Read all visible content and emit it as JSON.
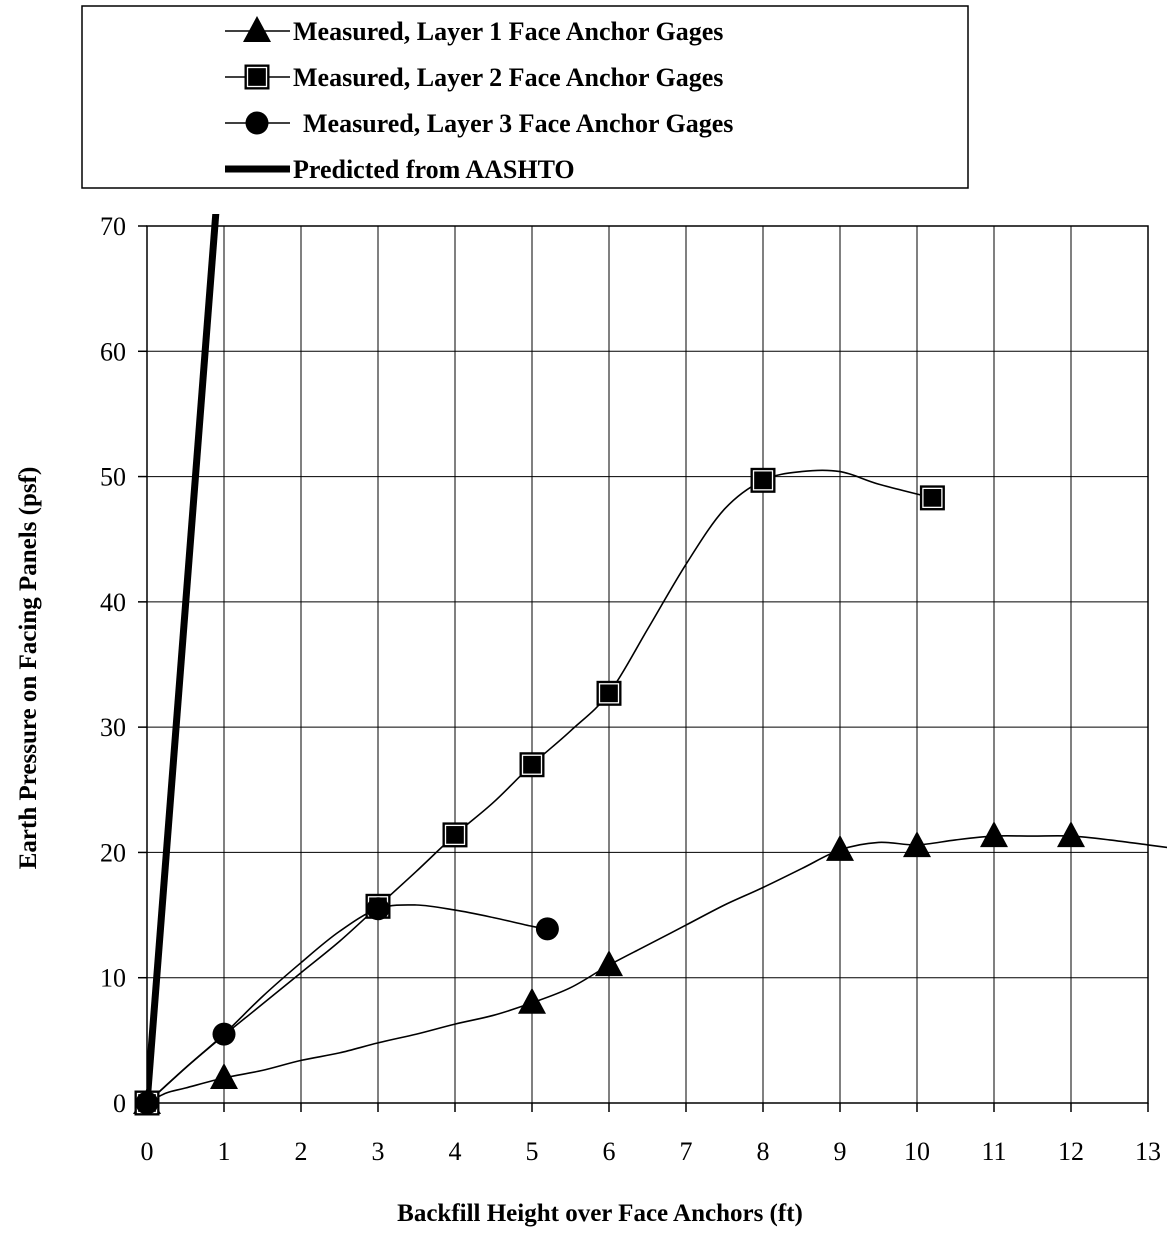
{
  "chart_data": {
    "type": "line",
    "title": "",
    "xlabel": "Backfill Height over Face Anchors (ft)",
    "ylabel": "Earth Pressure on Facing Panels (psf)",
    "xlim": [
      0,
      13
    ],
    "ylim": [
      0,
      70
    ],
    "xticks": [
      0,
      1,
      2,
      3,
      4,
      5,
      6,
      7,
      8,
      9,
      10,
      11,
      12,
      13
    ],
    "yticks": [
      0,
      10,
      20,
      30,
      40,
      50,
      60,
      70
    ],
    "grid": true,
    "legend_position": "top",
    "series": [
      {
        "name": "Measured, Layer 1 Face Anchor Gages",
        "marker": "triangle",
        "x": [
          0,
          1,
          5,
          6,
          9,
          10,
          11,
          12
        ],
        "y": [
          0,
          2.0,
          8.0,
          11.0,
          20.2,
          20.5,
          21.3,
          21.3
        ],
        "trend_x": [
          0,
          0.25,
          0.5,
          1,
          1.5,
          2,
          2.5,
          3,
          3.5,
          4,
          4.5,
          5,
          5.5,
          6,
          6.5,
          7,
          7.5,
          8,
          8.5,
          9,
          9.5,
          10,
          10.5,
          11,
          11.5,
          12,
          12.5,
          13,
          13.5
        ],
        "trend_y": [
          0,
          0.8,
          1.2,
          2.0,
          2.6,
          3.4,
          4.0,
          4.8,
          5.5,
          6.3,
          7.0,
          8.0,
          9.2,
          11.0,
          12.6,
          14.2,
          15.8,
          17.2,
          18.7,
          20.2,
          20.8,
          20.6,
          21.0,
          21.3,
          21.3,
          21.3,
          21.0,
          20.6,
          20.2
        ]
      },
      {
        "name": "Measured, Layer 2 Face Anchor Gages",
        "marker": "square",
        "x": [
          0,
          3,
          4,
          5,
          6,
          8,
          10.2
        ],
        "y": [
          0,
          15.7,
          21.4,
          27.0,
          32.7,
          49.7,
          48.3
        ],
        "trend_x": [
          0,
          0.5,
          1,
          1.5,
          2,
          2.5,
          3,
          3.5,
          4,
          4.5,
          5,
          5.5,
          6,
          6.5,
          7,
          7.5,
          8,
          8.5,
          9,
          9.5,
          10.2
        ],
        "trend_y": [
          0,
          2.8,
          5.4,
          7.9,
          10.4,
          12.9,
          15.7,
          18.5,
          21.4,
          24.0,
          27.0,
          29.7,
          32.7,
          37.8,
          43.0,
          47.4,
          49.7,
          50.4,
          50.4,
          49.4,
          48.3
        ]
      },
      {
        "name": "Measured, Layer 3 Face Anchor Gages",
        "marker": "circle",
        "x": [
          0,
          1,
          3,
          5.2
        ],
        "y": [
          0,
          5.5,
          15.5,
          13.9
        ],
        "trend_x": [
          0,
          0.5,
          1,
          1.5,
          2,
          2.5,
          3,
          3.5,
          4,
          4.5,
          5,
          5.2
        ],
        "trend_y": [
          0,
          2.8,
          5.5,
          8.5,
          11.2,
          13.7,
          15.5,
          15.8,
          15.4,
          14.8,
          14.1,
          13.9
        ]
      },
      {
        "name": "Predicted from AASHTO",
        "marker": "none",
        "x": [
          0,
          0.9
        ],
        "y": [
          0,
          71.5
        ]
      }
    ]
  }
}
